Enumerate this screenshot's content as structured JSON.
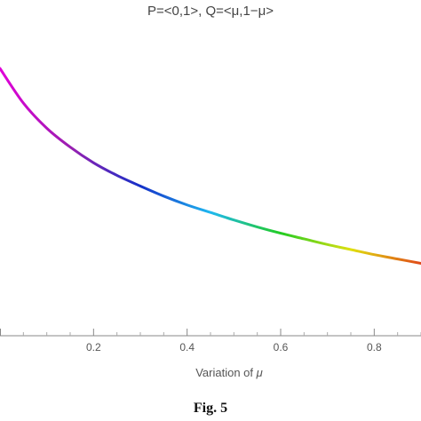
{
  "chart_data": {
    "type": "line",
    "title": "P=<0,1>, Q=<μ,1−μ>",
    "xlabel": "Variation of μ",
    "ylabel": "",
    "xlim": [
      0.0,
      0.9
    ],
    "ylim": [
      0.5,
      1.0
    ],
    "x_ticks": [
      0.2,
      0.4,
      0.6,
      0.8
    ],
    "x_tick_labels": [
      "0.2",
      "0.4",
      "0.6",
      "0.8"
    ],
    "y_ticks": [],
    "grid": false,
    "color_map": "hue (magenta → blue → cyan → green → yellow → red)",
    "series": [
      {
        "x": [
          0.0,
          0.05,
          0.1,
          0.15,
          0.2,
          0.25,
          0.3,
          0.35,
          0.4,
          0.45,
          0.5,
          0.55,
          0.6,
          0.65,
          0.7,
          0.75,
          0.8,
          0.85,
          0.9
        ],
        "y": [
          0.925,
          0.87,
          0.83,
          0.8,
          0.775,
          0.755,
          0.738,
          0.722,
          0.708,
          0.696,
          0.684,
          0.673,
          0.663,
          0.654,
          0.645,
          0.637,
          0.629,
          0.622,
          0.615
        ]
      }
    ],
    "colors": [
      "#e000d8",
      "#9a1fb0",
      "#1430c8",
      "#1fb8f0",
      "#22cc22",
      "#e0e010",
      "#e04818"
    ]
  },
  "caption": "Fig. 5"
}
